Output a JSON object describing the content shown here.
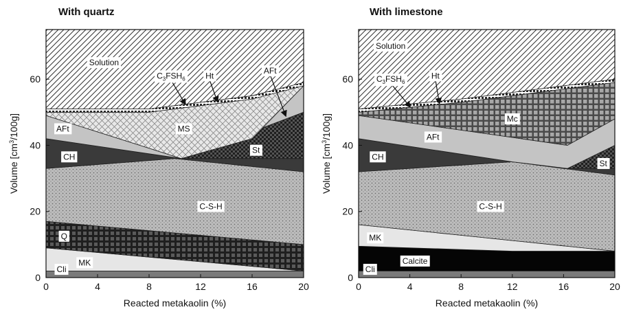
{
  "chart_data": [
    {
      "type": "area",
      "title": "With quartz",
      "xlabel": "Reacted metakaolin (%)",
      "ylabel": "Volume [cm3/100g]",
      "xlim": [
        0,
        20
      ],
      "ylim": [
        0,
        75
      ],
      "xticks": [
        "0",
        "4",
        "8",
        "12",
        "16",
        "20"
      ],
      "yticks": [
        "0",
        "20",
        "40",
        "60"
      ],
      "grid": false,
      "layers": [
        {
          "name": "Cli",
          "upper": [
            [
              0,
              2
            ],
            [
              20,
              2
            ]
          ],
          "color": "#7a7a7a",
          "pattern": "solid"
        },
        {
          "name": "MK",
          "upper": [
            [
              0,
              9
            ],
            [
              20,
              2
            ]
          ],
          "color": "#e6e6e6",
          "pattern": "solid"
        },
        {
          "name": "Q",
          "upper": [
            [
              0,
              17
            ],
            [
              20,
              10
            ]
          ],
          "color": "#2a2a2a",
          "pattern": "grid"
        },
        {
          "name": "C-S-H",
          "upper": [
            [
              0,
              33
            ],
            [
              10,
              36
            ],
            [
              20,
              32
            ]
          ],
          "color": "#b8b8b8",
          "pattern": "dots"
        },
        {
          "name": "CH",
          "upper": [
            [
              0,
              42
            ],
            [
              10.5,
              36
            ],
            [
              20,
              36
            ]
          ],
          "color": "#3a3a3a",
          "pattern": "solid"
        },
        {
          "name": "St",
          "upper": [
            [
              0,
              42
            ],
            [
              10.5,
              36
            ],
            [
              20,
              50
            ]
          ],
          "color": "#2c2c2c",
          "pattern": "checker"
        },
        {
          "name": "AFt",
          "upper": [
            [
              0,
              49
            ],
            [
              10.5,
              36
            ],
            [
              16,
              42
            ],
            [
              20,
              58
            ]
          ],
          "color": "#c4c4c4",
          "pattern": "solid"
        },
        {
          "name": "MS",
          "upper": [
            [
              0,
              50
            ],
            [
              8,
              50
            ],
            [
              12,
              52
            ],
            [
              16,
              54
            ],
            [
              20,
              58
            ]
          ],
          "color": "#e6e6e6",
          "pattern": "crosshatch"
        },
        {
          "name": "C3FSH6",
          "upper": [
            [
              0,
              51
            ],
            [
              8,
              51
            ],
            [
              12,
              53
            ],
            [
              16,
              55
            ],
            [
              20,
              59
            ]
          ],
          "color": "#ffffff",
          "pattern": "beads"
        },
        {
          "name": "Ht",
          "upper": [
            [
              0,
              51
            ],
            [
              8,
              51
            ],
            [
              12,
              53
            ],
            [
              16,
              55
            ],
            [
              20,
              59
            ]
          ],
          "color": "#ffffff",
          "pattern": "beads"
        },
        {
          "name": "Solution",
          "upper": [
            [
              0,
              75
            ],
            [
              20,
              75
            ]
          ],
          "color": "#ffffff",
          "pattern": "hatch"
        }
      ],
      "labels": [
        {
          "text": "Solution",
          "x": 4.5,
          "y": 65
        },
        {
          "text": "C3FSH6",
          "x": 9.7,
          "y": 61,
          "arrow_to": [
            10.8,
            52.5
          ]
        },
        {
          "text": "Ht",
          "x": 12.7,
          "y": 61,
          "arrow_to": [
            13.3,
            53.3
          ]
        },
        {
          "text": "AFt",
          "x": 17.4,
          "y": 62.5,
          "arrow_to": [
            18.6,
            49
          ]
        },
        {
          "text": "MS",
          "x": 10.7,
          "y": 45
        },
        {
          "text": "AFt",
          "x": 1.3,
          "y": 45
        },
        {
          "text": "CH",
          "x": 1.8,
          "y": 36.5
        },
        {
          "text": "St",
          "x": 16.3,
          "y": 38.5
        },
        {
          "text": "C-S-H",
          "x": 12.8,
          "y": 21.5
        },
        {
          "text": "Q",
          "x": 1.4,
          "y": 12.5
        },
        {
          "text": "MK",
          "x": 3,
          "y": 4.5
        },
        {
          "text": "Cli",
          "x": 1.2,
          "y": 2.5
        }
      ]
    },
    {
      "type": "area",
      "title": "With limestone",
      "xlabel": "Reacted metakaolin (%)",
      "ylabel": "Volume [cm3/100g]",
      "xlim": [
        0,
        20
      ],
      "ylim": [
        0,
        75
      ],
      "xticks": [
        "0",
        "4",
        "8",
        "12",
        "16",
        "20"
      ],
      "yticks": [
        "0",
        "20",
        "40",
        "60"
      ],
      "grid": false,
      "layers": [
        {
          "name": "Cli",
          "upper": [
            [
              0,
              2
            ],
            [
              20,
              2
            ]
          ],
          "color": "#7a7a7a",
          "pattern": "solid"
        },
        {
          "name": "Calcite",
          "upper": [
            [
              0,
              9.5
            ],
            [
              12,
              8
            ],
            [
              20,
              8
            ]
          ],
          "color": "#050505",
          "pattern": "solid"
        },
        {
          "name": "MK",
          "upper": [
            [
              0,
              16
            ],
            [
              20,
              8
            ]
          ],
          "color": "#e6e6e6",
          "pattern": "solid"
        },
        {
          "name": "C-S-H",
          "upper": [
            [
              0,
              32
            ],
            [
              12,
              35
            ],
            [
              20,
              31
            ]
          ],
          "color": "#b8b8b8",
          "pattern": "dots"
        },
        {
          "name": "CH",
          "upper": [
            [
              0,
              42
            ],
            [
              12,
              35
            ],
            [
              16.3,
              33
            ],
            [
              20,
              33
            ]
          ],
          "color": "#3a3a3a",
          "pattern": "solid"
        },
        {
          "name": "St",
          "upper": [
            [
              0,
              42
            ],
            [
              12,
              35
            ],
            [
              16.3,
              33
            ],
            [
              20,
              40
            ]
          ],
          "color": "#2c2c2c",
          "pattern": "checker"
        },
        {
          "name": "AFt",
          "upper": [
            [
              0,
              49
            ],
            [
              16.3,
              40
            ],
            [
              20,
              48
            ]
          ],
          "color": "#c4c4c4",
          "pattern": "solid"
        },
        {
          "name": "Mc",
          "upper": [
            [
              0,
              50
            ],
            [
              8,
              53
            ],
            [
              16,
              57
            ],
            [
              20,
              59
            ]
          ],
          "color": "#9a9a9a",
          "pattern": "grid"
        },
        {
          "name": "C3FSH6",
          "upper": [
            [
              0,
              51
            ],
            [
              8,
              54
            ],
            [
              16,
              58
            ],
            [
              20,
              60
            ]
          ],
          "color": "#ffffff",
          "pattern": "beads"
        },
        {
          "name": "Ht",
          "upper": [
            [
              0,
              51
            ],
            [
              8,
              54
            ],
            [
              16,
              58
            ],
            [
              20,
              60
            ]
          ],
          "color": "#ffffff",
          "pattern": "beads"
        },
        {
          "name": "Solution",
          "upper": [
            [
              0,
              75
            ],
            [
              20,
              75
            ]
          ],
          "color": "#ffffff",
          "pattern": "hatch"
        }
      ],
      "labels": [
        {
          "text": "Solution",
          "x": 2.5,
          "y": 70
        },
        {
          "text": "C3FSH6",
          "x": 2.5,
          "y": 60,
          "arrow_to": [
            4,
            51.7
          ]
        },
        {
          "text": "Ht",
          "x": 6,
          "y": 61,
          "arrow_to": [
            6.3,
            52.8
          ]
        },
        {
          "text": "Mc",
          "x": 12,
          "y": 48
        },
        {
          "text": "AFt",
          "x": 5.8,
          "y": 42.5
        },
        {
          "text": "CH",
          "x": 1.5,
          "y": 36.5
        },
        {
          "text": "St",
          "x": 19.1,
          "y": 34.5
        },
        {
          "text": "C-S-H",
          "x": 10.3,
          "y": 21.5
        },
        {
          "text": "MK",
          "x": 1.3,
          "y": 12
        },
        {
          "text": "Calcite",
          "x": 4.4,
          "y": 5
        },
        {
          "text": "Cli",
          "x": 0.9,
          "y": 2.5
        }
      ]
    }
  ]
}
